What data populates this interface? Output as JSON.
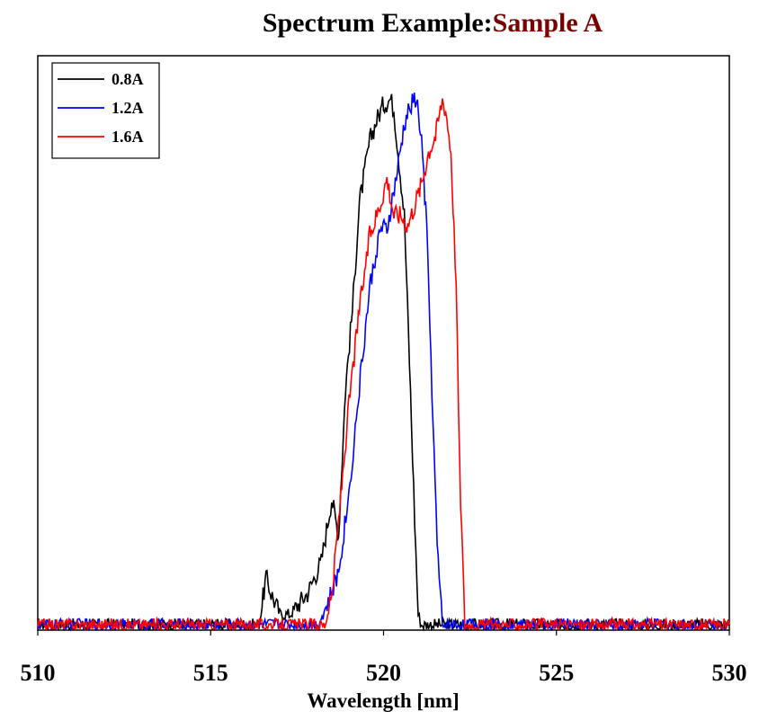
{
  "chart_data": {
    "type": "line",
    "title": "Spectrum Example",
    "title_separator": ":",
    "subtitle": "Sample A",
    "subtitle_color": "#7a0000",
    "xlabel": "Wavelength [nm]",
    "ylabel": "",
    "xlim": [
      510,
      530
    ],
    "ylim": [
      0,
      1.05
    ],
    "xticks": [
      "510",
      "515",
      "520",
      "525",
      "530"
    ],
    "y_tick_labels_shown": false,
    "grid": false,
    "legend": "top-left",
    "series": [
      {
        "name": "0.8A",
        "color": "#000000",
        "x": [
          510,
          516.4,
          516.6,
          516.75,
          517.0,
          517.3,
          517.8,
          518.2,
          518.5,
          518.7,
          518.9,
          519.1,
          519.3,
          519.6,
          519.8,
          520.0,
          520.2,
          520.3,
          520.45,
          520.6,
          520.75,
          520.9,
          521.0,
          521.1,
          521.3,
          521.6,
          530
        ],
        "values": [
          0.0,
          0.0,
          0.09,
          0.06,
          0.02,
          0.02,
          0.06,
          0.12,
          0.24,
          0.17,
          0.45,
          0.6,
          0.8,
          0.92,
          0.96,
          0.99,
          1.0,
          0.98,
          0.88,
          0.78,
          0.5,
          0.2,
          0.02,
          0.0,
          0.0,
          0.0,
          0.0
        ]
      },
      {
        "name": "1.2A",
        "color": "#0000ff",
        "x": [
          510,
          518.1,
          518.4,
          518.7,
          519.0,
          519.3,
          519.6,
          519.9,
          520.1,
          520.4,
          520.6,
          520.8,
          520.95,
          521.1,
          521.25,
          521.4,
          521.55,
          521.7,
          530
        ],
        "values": [
          0.0,
          0.0,
          0.04,
          0.1,
          0.25,
          0.45,
          0.64,
          0.75,
          0.75,
          0.86,
          0.95,
          0.99,
          1.0,
          0.92,
          0.75,
          0.45,
          0.15,
          0.0,
          0.0
        ]
      },
      {
        "name": "1.6A",
        "color": "#ff0000",
        "x": [
          510,
          518.3,
          518.5,
          518.7,
          519.0,
          519.3,
          519.6,
          519.9,
          520.1,
          520.3,
          520.5,
          520.7,
          520.9,
          521.1,
          521.3,
          521.5,
          521.7,
          521.8,
          521.95,
          522.1,
          522.2,
          522.35,
          530
        ],
        "values": [
          0.0,
          0.0,
          0.05,
          0.2,
          0.42,
          0.6,
          0.74,
          0.8,
          0.85,
          0.78,
          0.78,
          0.76,
          0.8,
          0.84,
          0.9,
          0.93,
          1.0,
          0.98,
          0.9,
          0.65,
          0.3,
          0.0,
          0.0
        ]
      }
    ]
  }
}
